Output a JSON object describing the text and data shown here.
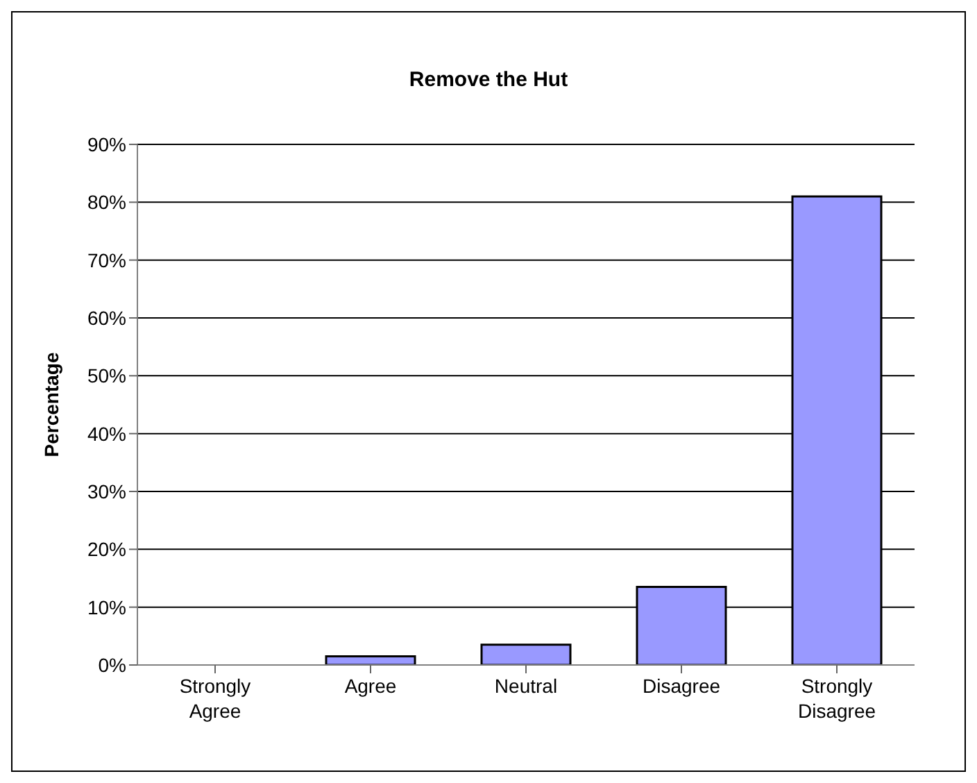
{
  "chart_data": {
    "type": "bar",
    "title": "Remove the Hut",
    "ylabel": "Percentage",
    "categories": [
      "Strongly Agree",
      "Agree",
      "Neutral",
      "Disagree",
      "Strongly Disagree"
    ],
    "values": [
      0,
      1.5,
      3.5,
      13.5,
      81
    ],
    "color": "#9999ff",
    "ylim": [
      0,
      90
    ],
    "yticks": [
      {
        "value": 0,
        "label": "0%"
      },
      {
        "value": 10,
        "label": "10%"
      },
      {
        "value": 20,
        "label": "20%"
      },
      {
        "value": 30,
        "label": "30%"
      },
      {
        "value": 40,
        "label": "40%"
      },
      {
        "value": 50,
        "label": "50%"
      },
      {
        "value": 60,
        "label": "60%"
      },
      {
        "value": 70,
        "label": "70%"
      },
      {
        "value": 80,
        "label": "80%"
      },
      {
        "value": 90,
        "label": "90%"
      }
    ],
    "grid": "y",
    "legend": false
  }
}
